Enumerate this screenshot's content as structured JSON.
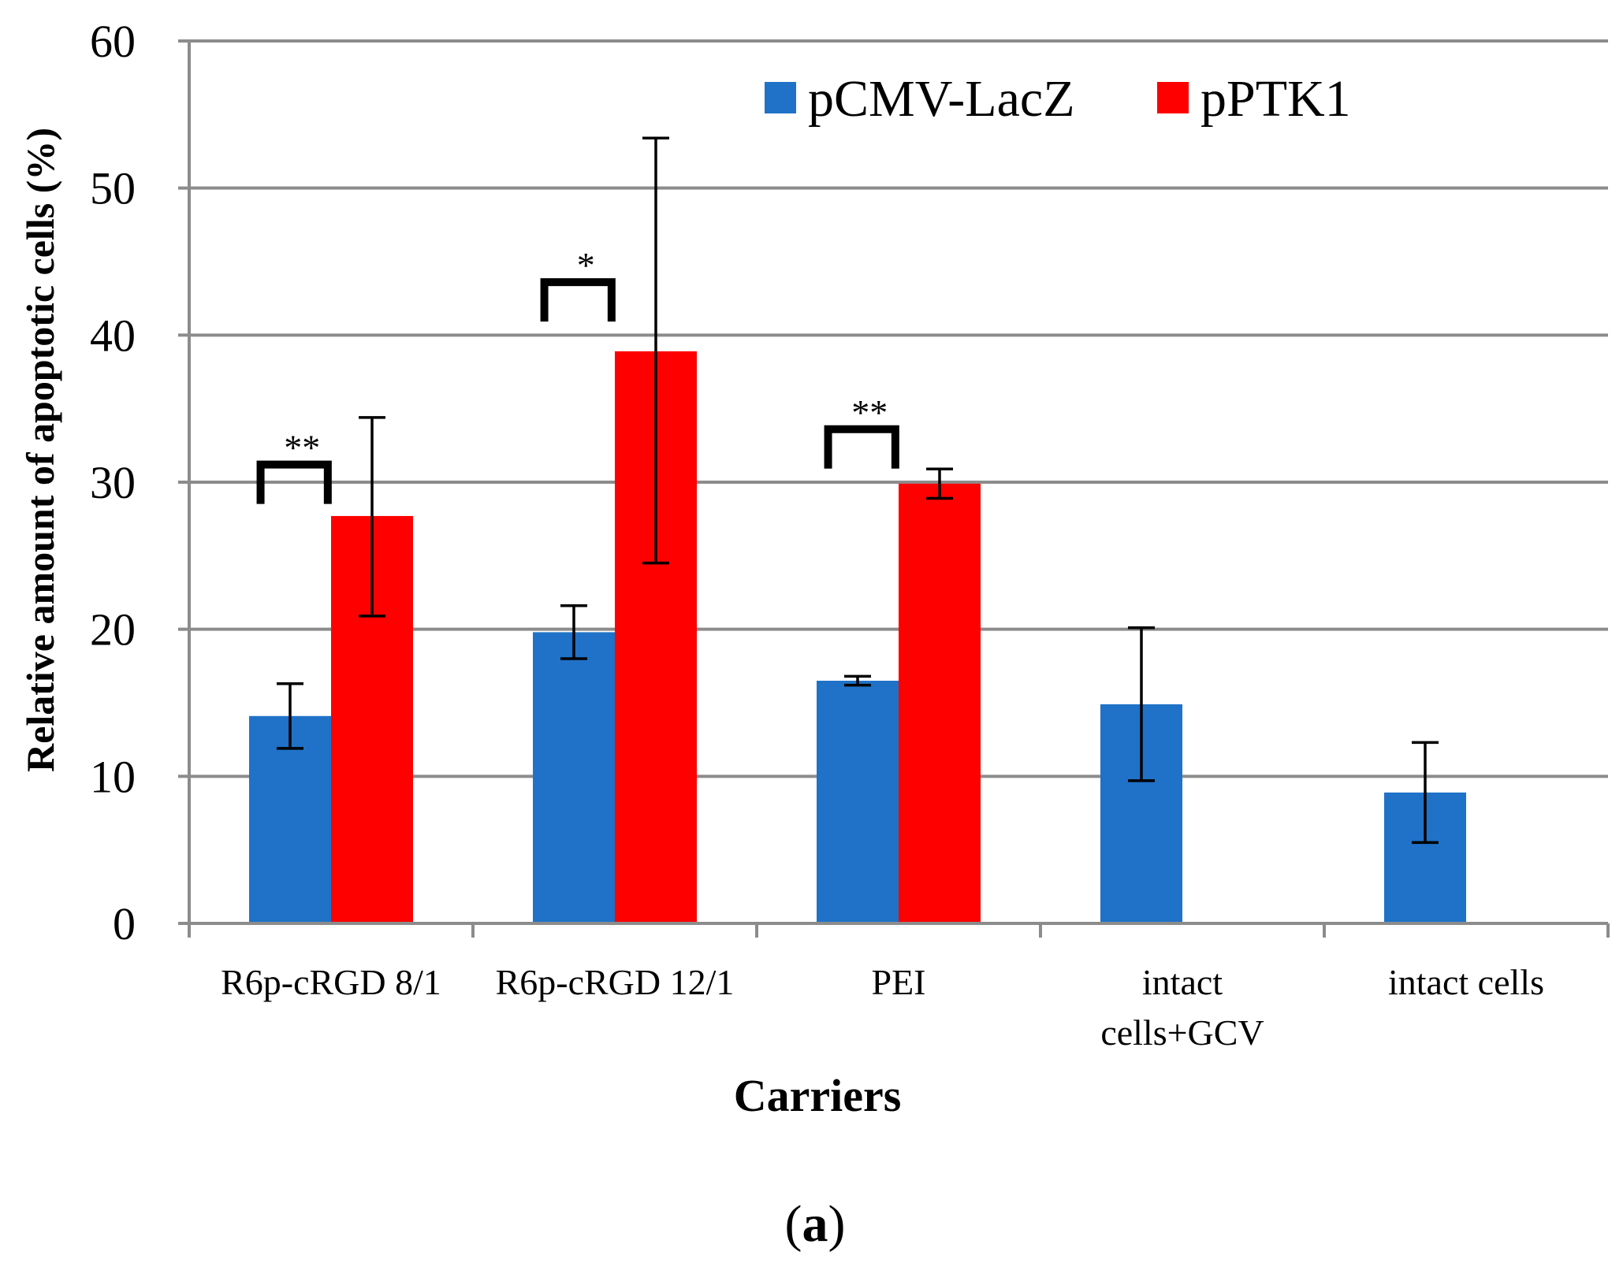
{
  "chart_data": {
    "type": "bar",
    "title": "",
    "xlabel": "Carriers",
    "ylabel": "Relative amount of apoptotic cells (%)",
    "ylim": [
      0,
      60
    ],
    "yticks": [
      0,
      10,
      20,
      30,
      40,
      50,
      60
    ],
    "grid": true,
    "legend_position": "top-right",
    "categories": [
      [
        "R6p-cRGD 8/1"
      ],
      [
        "R6p-cRGD 12/1"
      ],
      [
        "PEI"
      ],
      [
        "intact",
        "cells+GCV"
      ],
      [
        "intact cells"
      ]
    ],
    "series": [
      {
        "name": "pCMV-LacZ",
        "color": "#1f72c8",
        "values": [
          14.1,
          19.8,
          16.5,
          14.9,
          8.9
        ],
        "error_low": [
          11.9,
          18.0,
          16.2,
          9.7,
          5.5
        ],
        "error_high": [
          16.3,
          21.6,
          16.8,
          20.1,
          12.3
        ]
      },
      {
        "name": "pPTK1",
        "color": "#ff0000",
        "values": [
          27.7,
          38.9,
          29.9,
          null,
          null
        ],
        "error_low": [
          20.9,
          24.5,
          28.9,
          null,
          null
        ],
        "error_high": [
          34.4,
          53.4,
          30.9,
          null,
          null
        ]
      }
    ],
    "significance": [
      {
        "category": 0,
        "label": "**",
        "y": 31.2
      },
      {
        "category": 1,
        "label": "*",
        "y": 43.6
      },
      {
        "category": 2,
        "label": "**",
        "y": 33.6
      }
    ]
  },
  "figure_label": "(a)",
  "figure_label_parts": {
    "open": "(",
    "letter": "a",
    "close": ")"
  }
}
